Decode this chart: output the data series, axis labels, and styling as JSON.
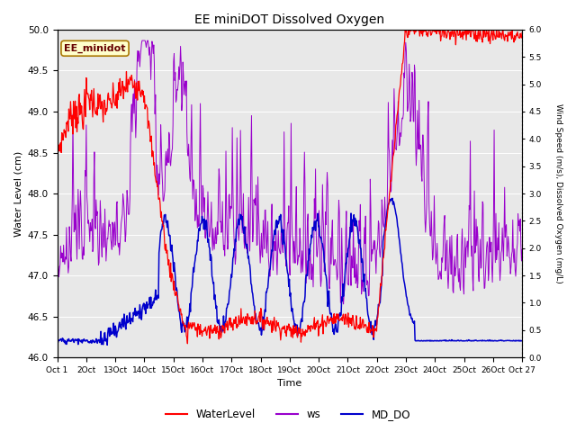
{
  "title": "EE miniDOT Dissolved Oxygen",
  "xlabel": "Time",
  "ylabel_left": "Water Level (cm)",
  "ylabel_right": "Wind Speed (m/s), Dissolved Oxygen (mg/L)",
  "station_label": "EE_minidot",
  "ylim_left": [
    46.0,
    50.0
  ],
  "ylim_right": [
    0.0,
    6.0
  ],
  "x_tick_labels": [
    "Oct 1",
    "2Oct",
    "13Oct",
    "14Oct",
    "15Oct",
    "16Oct",
    "17Oct",
    "18Oct",
    "19Oct",
    "20Oct",
    "21Oct",
    "22Oct",
    "23Oct",
    "24Oct",
    "25Oct",
    "26Oct",
    "Oct 27"
  ],
  "line_colors": {
    "WaterLevel": "#ff0000",
    "ws": "#9900cc",
    "MD_DO": "#0000cc"
  },
  "background_color": "#e8e8e8",
  "grid_color": "#ffffff",
  "legend_labels": [
    "WaterLevel",
    "ws",
    "MD_DO"
  ],
  "n_points": 800,
  "days": 16
}
